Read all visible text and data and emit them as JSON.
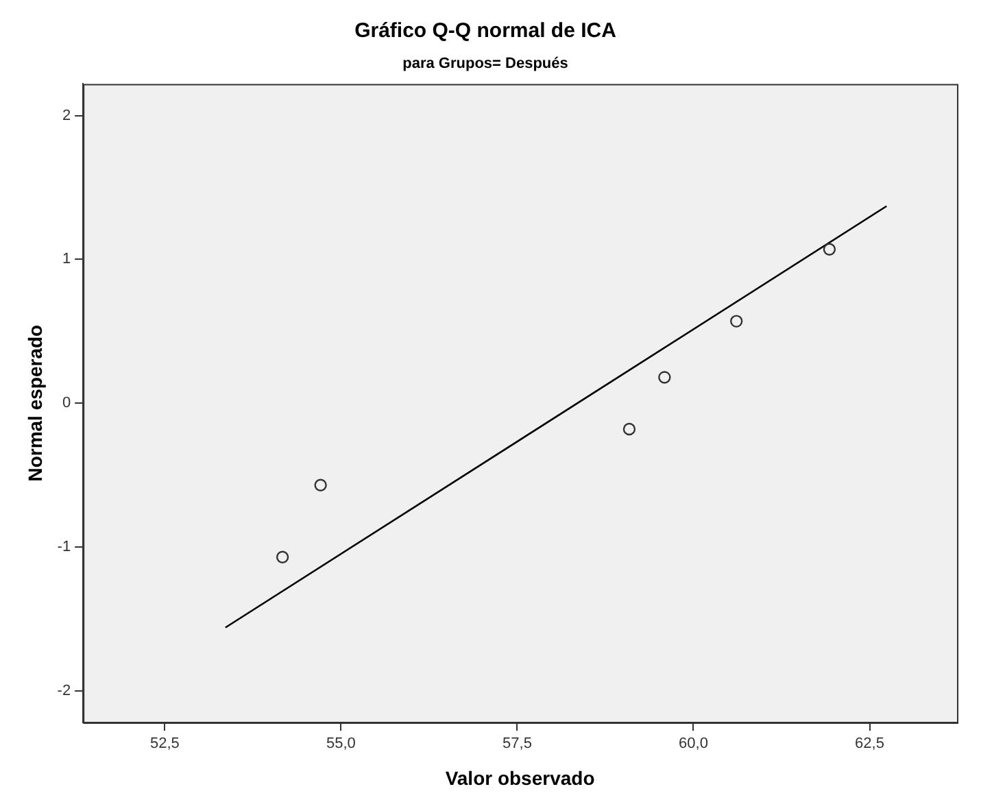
{
  "chart_data": {
    "type": "scatter",
    "title": "Gráfico Q-Q normal de ICA",
    "subtitle": "para Grupos= Después",
    "xlabel": "Valor observado",
    "ylabel": "Normal esperado",
    "xlim": [
      51.34,
      63.74
    ],
    "ylim": [
      -2.22,
      2.22
    ],
    "xticks": [
      {
        "value": 52.5,
        "label": "52,5"
      },
      {
        "value": 55,
        "label": "55,0"
      },
      {
        "value": 57.5,
        "label": "57,5"
      },
      {
        "value": 60,
        "label": "60,0"
      },
      {
        "value": 62.5,
        "label": "62,5"
      }
    ],
    "yticks": [
      -2,
      -1,
      0,
      1,
      2
    ],
    "grid": false,
    "legend": false,
    "series": [
      {
        "marker": "circle",
        "color": "#333333",
        "x": [
          54.17,
          54.71,
          59.09,
          59.59,
          60.61,
          61.93
        ],
        "values": [
          -1.07,
          -0.57,
          -0.18,
          0.18,
          0.57,
          1.07
        ]
      },
      {
        "type": "line",
        "marker": "none",
        "color": "#000000",
        "x": [
          53.36,
          62.74
        ],
        "values": [
          -1.56,
          1.37
        ]
      }
    ]
  }
}
